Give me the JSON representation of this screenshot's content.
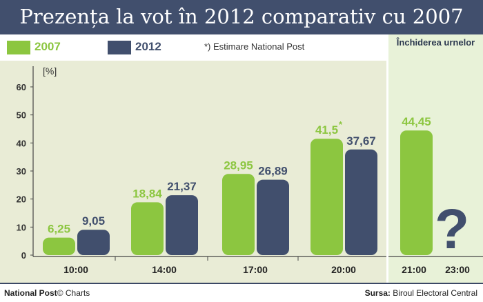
{
  "title": "Prezența la vot în 2012 comparativ cu 2007",
  "legend": [
    {
      "label": "2007",
      "color": "#8cc640"
    },
    {
      "label": "2012",
      "color": "#414f6d"
    }
  ],
  "note": "*) Estimare National Post",
  "closing_label": "Închiderea urnelor",
  "footer": {
    "source_brand": "National Post",
    "source_suffix": "© Charts",
    "source_label": "Sursa:",
    "source_value": "Biroul Electoral Central"
  },
  "chart_data": {
    "type": "bar",
    "ylabel": "[%]",
    "ylim": [
      0,
      60
    ],
    "yticks": [
      0,
      10,
      20,
      30,
      40,
      50,
      60
    ],
    "categories": [
      "10:00",
      "14:00",
      "17:00",
      "20:00",
      "21:00",
      "23:00"
    ],
    "series": [
      {
        "name": "2007",
        "color": "#8cc640",
        "values": [
          6.25,
          18.84,
          28.95,
          41.5,
          44.45,
          null
        ],
        "labels": [
          "6,25",
          "18,84",
          "28,95",
          "41,5",
          "44,45",
          ""
        ]
      },
      {
        "name": "2012",
        "color": "#414f6d",
        "values": [
          9.05,
          21.37,
          26.89,
          37.67,
          null,
          null
        ],
        "labels": [
          "9,05",
          "21,37",
          "26,89",
          "37,67",
          "",
          ""
        ]
      }
    ],
    "annotations": [
      {
        "text": "*",
        "category": "20:00",
        "series": "2007"
      },
      {
        "text": "?",
        "category": "23:00"
      }
    ],
    "grid": false,
    "legend_position": "top-left"
  }
}
